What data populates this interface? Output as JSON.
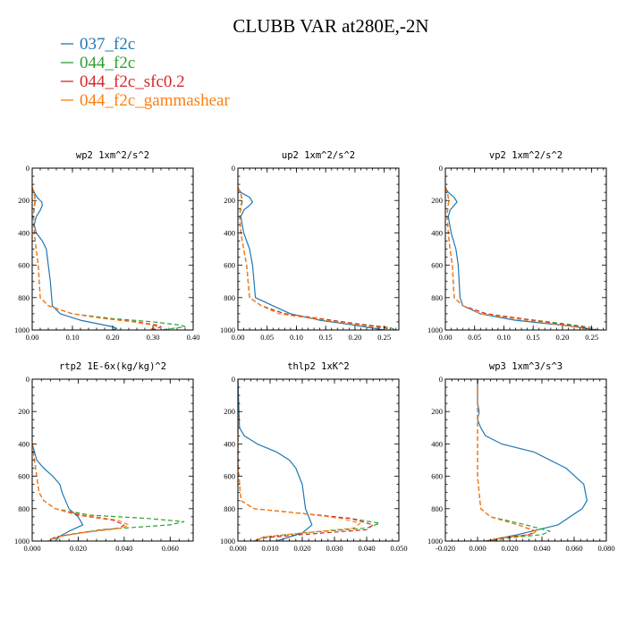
{
  "title": "CLUBB VAR at280E,-2N",
  "legend": [
    {
      "label": "037_f2c",
      "color": "#1f77b4",
      "dash": "solid"
    },
    {
      "label": "044_f2c",
      "color": "#2ca02c",
      "dash": "dashed"
    },
    {
      "label": "044_f2c_sfc0.2",
      "color": "#d62728",
      "dash": "dashed"
    },
    {
      "label": "044_f2c_gammashear",
      "color": "#ff7f0e",
      "dash": "dashed"
    }
  ],
  "chart_data": [
    {
      "type": "line",
      "title": "wp2  1xm^2/s^2",
      "xlim": [
        0,
        0.4
      ],
      "ylim": [
        1000,
        0
      ],
      "xticks": [
        "0.00",
        "0.10",
        "0.20",
        "0.30",
        "0.40"
      ],
      "xtick_values": [
        0,
        0.1,
        0.2,
        0.3,
        0.4
      ],
      "yticks": [
        "0",
        "200",
        "400",
        "600",
        "800",
        "1000"
      ],
      "ytick_values": [
        0,
        200,
        400,
        600,
        800,
        1000
      ],
      "series": [
        {
          "name": "037_f2c",
          "x": [
            0.0,
            0.005,
            0.012,
            0.024,
            0.025,
            0.02,
            0.01,
            0.005,
            0.01,
            0.025,
            0.035,
            0.04,
            0.045,
            0.05,
            0.07,
            0.12,
            0.2,
            0.21,
            0.2
          ],
          "y": [
            120,
            150,
            180,
            210,
            230,
            260,
            300,
            350,
            400,
            450,
            500,
            600,
            700,
            850,
            900,
            940,
            980,
            990,
            1000
          ]
        },
        {
          "name": "044_f2c",
          "x": [
            0.0,
            0.005,
            0.008,
            0.005,
            0.003,
            0.005,
            0.01,
            0.015,
            0.02,
            0.04,
            0.1,
            0.2,
            0.3,
            0.37,
            0.38,
            0.32
          ],
          "y": [
            120,
            160,
            200,
            250,
            300,
            400,
            500,
            600,
            800,
            850,
            900,
            930,
            950,
            970,
            980,
            1000
          ]
        },
        {
          "name": "044_f2c_sfc0.2",
          "x": [
            0.0,
            0.005,
            0.007,
            0.004,
            0.003,
            0.005,
            0.01,
            0.015,
            0.02,
            0.04,
            0.1,
            0.18,
            0.26,
            0.31,
            0.32,
            0.3
          ],
          "y": [
            120,
            160,
            200,
            250,
            300,
            400,
            500,
            600,
            800,
            850,
            900,
            930,
            950,
            970,
            980,
            1000
          ]
        },
        {
          "name": "044_f2c_gammashear",
          "x": [
            0.0,
            0.005,
            0.007,
            0.004,
            0.003,
            0.005,
            0.01,
            0.015,
            0.02,
            0.04,
            0.1,
            0.18,
            0.25,
            0.3,
            0.31,
            0.29
          ],
          "y": [
            120,
            160,
            200,
            250,
            300,
            400,
            500,
            600,
            800,
            850,
            900,
            930,
            950,
            970,
            980,
            1000
          ]
        }
      ]
    },
    {
      "type": "line",
      "title": "up2  1xm^2/s^2",
      "xlim": [
        0,
        0.275
      ],
      "ylim": [
        1000,
        0
      ],
      "xticks": [
        "0.00",
        "0.05",
        "0.10",
        "0.15",
        "0.20",
        "0.25"
      ],
      "xtick_values": [
        0,
        0.05,
        0.1,
        0.15,
        0.2,
        0.25
      ],
      "yticks": [
        "0",
        "200",
        "400",
        "600",
        "800",
        "1000"
      ],
      "ytick_values": [
        0,
        200,
        400,
        600,
        800,
        1000
      ],
      "series": [
        {
          "name": "037_f2c",
          "x": [
            0.0,
            0.005,
            0.02,
            0.025,
            0.02,
            0.01,
            0.005,
            0.01,
            0.02,
            0.025,
            0.03,
            0.06,
            0.09,
            0.14,
            0.2,
            0.25
          ],
          "y": [
            120,
            150,
            180,
            210,
            230,
            260,
            300,
            400,
            500,
            600,
            800,
            850,
            900,
            940,
            970,
            1000
          ]
        },
        {
          "name": "044_f2c",
          "x": [
            0.0,
            0.005,
            0.008,
            0.005,
            0.003,
            0.005,
            0.01,
            0.015,
            0.02,
            0.04,
            0.08,
            0.14,
            0.2,
            0.26,
            0.27
          ],
          "y": [
            120,
            160,
            200,
            250,
            300,
            400,
            500,
            600,
            800,
            850,
            900,
            930,
            960,
            985,
            1000
          ]
        },
        {
          "name": "044_f2c_sfc0.2",
          "x": [
            0.0,
            0.005,
            0.007,
            0.004,
            0.003,
            0.005,
            0.01,
            0.015,
            0.02,
            0.04,
            0.08,
            0.14,
            0.2,
            0.25,
            0.26
          ],
          "y": [
            120,
            160,
            200,
            250,
            300,
            400,
            500,
            600,
            800,
            850,
            900,
            930,
            960,
            985,
            1000
          ]
        },
        {
          "name": "044_f2c_gammashear",
          "x": [
            0.0,
            0.005,
            0.007,
            0.004,
            0.003,
            0.005,
            0.01,
            0.015,
            0.02,
            0.04,
            0.07,
            0.13,
            0.19,
            0.24,
            0.25
          ],
          "y": [
            120,
            160,
            200,
            250,
            300,
            400,
            500,
            600,
            800,
            850,
            900,
            930,
            960,
            985,
            1000
          ]
        }
      ]
    },
    {
      "type": "line",
      "title": "vp2  1xm^2/s^2",
      "xlim": [
        0,
        0.275
      ],
      "ylim": [
        1000,
        0
      ],
      "xticks": [
        "0.00",
        "0.05",
        "0.10",
        "0.15",
        "0.20",
        "0.25"
      ],
      "xtick_values": [
        0,
        0.05,
        0.1,
        0.15,
        0.2,
        0.25
      ],
      "yticks": [
        "0",
        "200",
        "400",
        "600",
        "800",
        "1000"
      ],
      "ytick_values": [
        0,
        200,
        400,
        600,
        800,
        1000
      ],
      "series": [
        {
          "name": "037_f2c",
          "x": [
            0.0,
            0.005,
            0.015,
            0.02,
            0.015,
            0.008,
            0.005,
            0.01,
            0.018,
            0.022,
            0.025,
            0.03,
            0.06,
            0.12,
            0.2,
            0.26
          ],
          "y": [
            120,
            150,
            180,
            210,
            230,
            260,
            300,
            400,
            500,
            600,
            800,
            850,
            900,
            940,
            970,
            1000
          ]
        },
        {
          "name": "044_f2c",
          "x": [
            0.0,
            0.004,
            0.006,
            0.004,
            0.003,
            0.005,
            0.008,
            0.012,
            0.015,
            0.03,
            0.07,
            0.13,
            0.2,
            0.25,
            0.26
          ],
          "y": [
            120,
            160,
            200,
            250,
            300,
            400,
            500,
            600,
            800,
            850,
            900,
            930,
            960,
            985,
            1000
          ]
        },
        {
          "name": "044_f2c_sfc0.2",
          "x": [
            0.0,
            0.004,
            0.006,
            0.004,
            0.003,
            0.005,
            0.008,
            0.012,
            0.015,
            0.03,
            0.07,
            0.13,
            0.19,
            0.24,
            0.25
          ],
          "y": [
            120,
            160,
            200,
            250,
            300,
            400,
            500,
            600,
            800,
            850,
            900,
            930,
            960,
            985,
            1000
          ]
        },
        {
          "name": "044_f2c_gammashear",
          "x": [
            0.0,
            0.004,
            0.006,
            0.004,
            0.003,
            0.005,
            0.008,
            0.012,
            0.015,
            0.03,
            0.06,
            0.12,
            0.18,
            0.23,
            0.24
          ],
          "y": [
            120,
            160,
            200,
            250,
            300,
            400,
            500,
            600,
            800,
            850,
            900,
            930,
            960,
            985,
            1000
          ]
        }
      ]
    },
    {
      "type": "line",
      "title": "rtp2  1E-6x(kg/kg)^2",
      "xlim": [
        0,
        0.07
      ],
      "ylim": [
        1000,
        0
      ],
      "xticks": [
        "0.000",
        "0.020",
        "0.040",
        "0.060"
      ],
      "xtick_values": [
        0,
        0.02,
        0.04,
        0.06
      ],
      "yticks": [
        "0",
        "200",
        "400",
        "600",
        "800",
        "1000"
      ],
      "ytick_values": [
        0,
        200,
        400,
        600,
        800,
        1000
      ],
      "series": [
        {
          "name": "037_f2c",
          "x": [
            0.0,
            0.001,
            0.002,
            0.005,
            0.009,
            0.012,
            0.013,
            0.016,
            0.02,
            0.022,
            0.016,
            0.012,
            0.01
          ],
          "y": [
            400,
            450,
            500,
            550,
            600,
            650,
            700,
            800,
            850,
            900,
            940,
            970,
            1000
          ]
        },
        {
          "name": "044_f2c",
          "x": [
            0.0,
            0.001,
            0.002,
            0.003,
            0.005,
            0.01,
            0.025,
            0.05,
            0.066,
            0.06,
            0.03,
            0.012,
            0.008
          ],
          "y": [
            400,
            500,
            600,
            700,
            750,
            800,
            840,
            860,
            880,
            900,
            930,
            970,
            1000
          ]
        },
        {
          "name": "044_f2c_sfc0.2",
          "x": [
            0.0,
            0.001,
            0.002,
            0.003,
            0.005,
            0.01,
            0.02,
            0.035,
            0.04,
            0.038,
            0.02,
            0.01,
            0.007
          ],
          "y": [
            400,
            500,
            600,
            700,
            750,
            800,
            840,
            870,
            900,
            920,
            950,
            975,
            1000
          ]
        },
        {
          "name": "044_f2c_gammashear",
          "x": [
            0.0,
            0.001,
            0.002,
            0.003,
            0.005,
            0.01,
            0.022,
            0.037,
            0.042,
            0.039,
            0.021,
            0.011,
            0.007
          ],
          "y": [
            400,
            500,
            600,
            700,
            750,
            800,
            840,
            870,
            900,
            920,
            950,
            975,
            1000
          ]
        }
      ]
    },
    {
      "type": "line",
      "title": "thlp2  1xK^2",
      "xlim": [
        0,
        0.05
      ],
      "ylim": [
        1000,
        0
      ],
      "xticks": [
        "0.000",
        "0.010",
        "0.020",
        "0.030",
        "0.040",
        "0.050"
      ],
      "xtick_values": [
        0,
        0.01,
        0.02,
        0.03,
        0.04,
        0.05
      ],
      "yticks": [
        "0",
        "200",
        "400",
        "600",
        "800",
        "1000"
      ],
      "ytick_values": [
        0,
        200,
        400,
        600,
        800,
        1000
      ],
      "series": [
        {
          "name": "037_f2c",
          "x": [
            0.0,
            0.0005,
            0.002,
            0.006,
            0.012,
            0.016,
            0.018,
            0.019,
            0.02,
            0.021,
            0.023,
            0.02,
            0.012
          ],
          "y": [
            0,
            300,
            350,
            400,
            450,
            500,
            550,
            600,
            650,
            800,
            900,
            950,
            1000
          ]
        },
        {
          "name": "044_f2c",
          "x": [
            0.0,
            0.0,
            0.0005,
            0.001,
            0.005,
            0.02,
            0.035,
            0.044,
            0.04,
            0.02,
            0.008,
            0.005
          ],
          "y": [
            0,
            500,
            650,
            750,
            800,
            830,
            860,
            890,
            920,
            950,
            975,
            1000
          ]
        },
        {
          "name": "044_f2c_sfc0.2",
          "x": [
            0.0,
            0.0,
            0.0005,
            0.001,
            0.005,
            0.02,
            0.035,
            0.042,
            0.04,
            0.02,
            0.008,
            0.005
          ],
          "y": [
            0,
            500,
            650,
            750,
            800,
            830,
            860,
            900,
            930,
            960,
            980,
            1000
          ]
        },
        {
          "name": "044_f2c_gammashear",
          "x": [
            0.0,
            0.0,
            0.0005,
            0.001,
            0.005,
            0.02,
            0.032,
            0.038,
            0.036,
            0.02,
            0.008,
            0.005
          ],
          "y": [
            0,
            500,
            650,
            750,
            800,
            830,
            860,
            890,
            920,
            950,
            975,
            1000
          ]
        }
      ]
    },
    {
      "type": "line",
      "title": "wp3  1xm^3/s^3",
      "xlim": [
        -0.02,
        0.08
      ],
      "ylim": [
        1000,
        0
      ],
      "xticks": [
        "-0.020",
        "0.000",
        "0.020",
        "0.040",
        "0.060",
        "0.080"
      ],
      "xtick_values": [
        -0.02,
        0.0,
        0.02,
        0.04,
        0.06,
        0.08
      ],
      "yticks": [
        "0",
        "200",
        "400",
        "600",
        "800",
        "1000"
      ],
      "ytick_values": [
        0,
        200,
        400,
        600,
        800,
        1000
      ],
      "series": [
        {
          "name": "037_f2c",
          "x": [
            0.0,
            0.0,
            0.001,
            0.0,
            0.002,
            0.005,
            0.015,
            0.035,
            0.055,
            0.066,
            0.068,
            0.065,
            0.05,
            0.025,
            0.005
          ],
          "y": [
            0,
            150,
            200,
            250,
            300,
            350,
            400,
            450,
            550,
            650,
            750,
            800,
            900,
            960,
            1000
          ]
        },
        {
          "name": "044_f2c",
          "x": [
            0.0,
            0.0,
            0.0,
            0.001,
            0.002,
            0.008,
            0.03,
            0.045,
            0.04,
            0.02,
            0.008
          ],
          "y": [
            0,
            200,
            600,
            700,
            800,
            850,
            900,
            940,
            960,
            980,
            1000
          ]
        },
        {
          "name": "044_f2c_sfc0.2",
          "x": [
            0.0,
            0.0,
            0.0,
            0.001,
            0.002,
            0.008,
            0.025,
            0.036,
            0.032,
            0.015,
            0.006
          ],
          "y": [
            0,
            200,
            600,
            700,
            800,
            850,
            900,
            940,
            960,
            980,
            1000
          ]
        },
        {
          "name": "044_f2c_gammashear",
          "x": [
            0.0,
            0.0,
            0.0,
            0.001,
            0.002,
            0.008,
            0.025,
            0.037,
            0.033,
            0.016,
            0.006
          ],
          "y": [
            0,
            200,
            600,
            700,
            800,
            850,
            900,
            940,
            960,
            980,
            1000
          ]
        }
      ]
    }
  ]
}
